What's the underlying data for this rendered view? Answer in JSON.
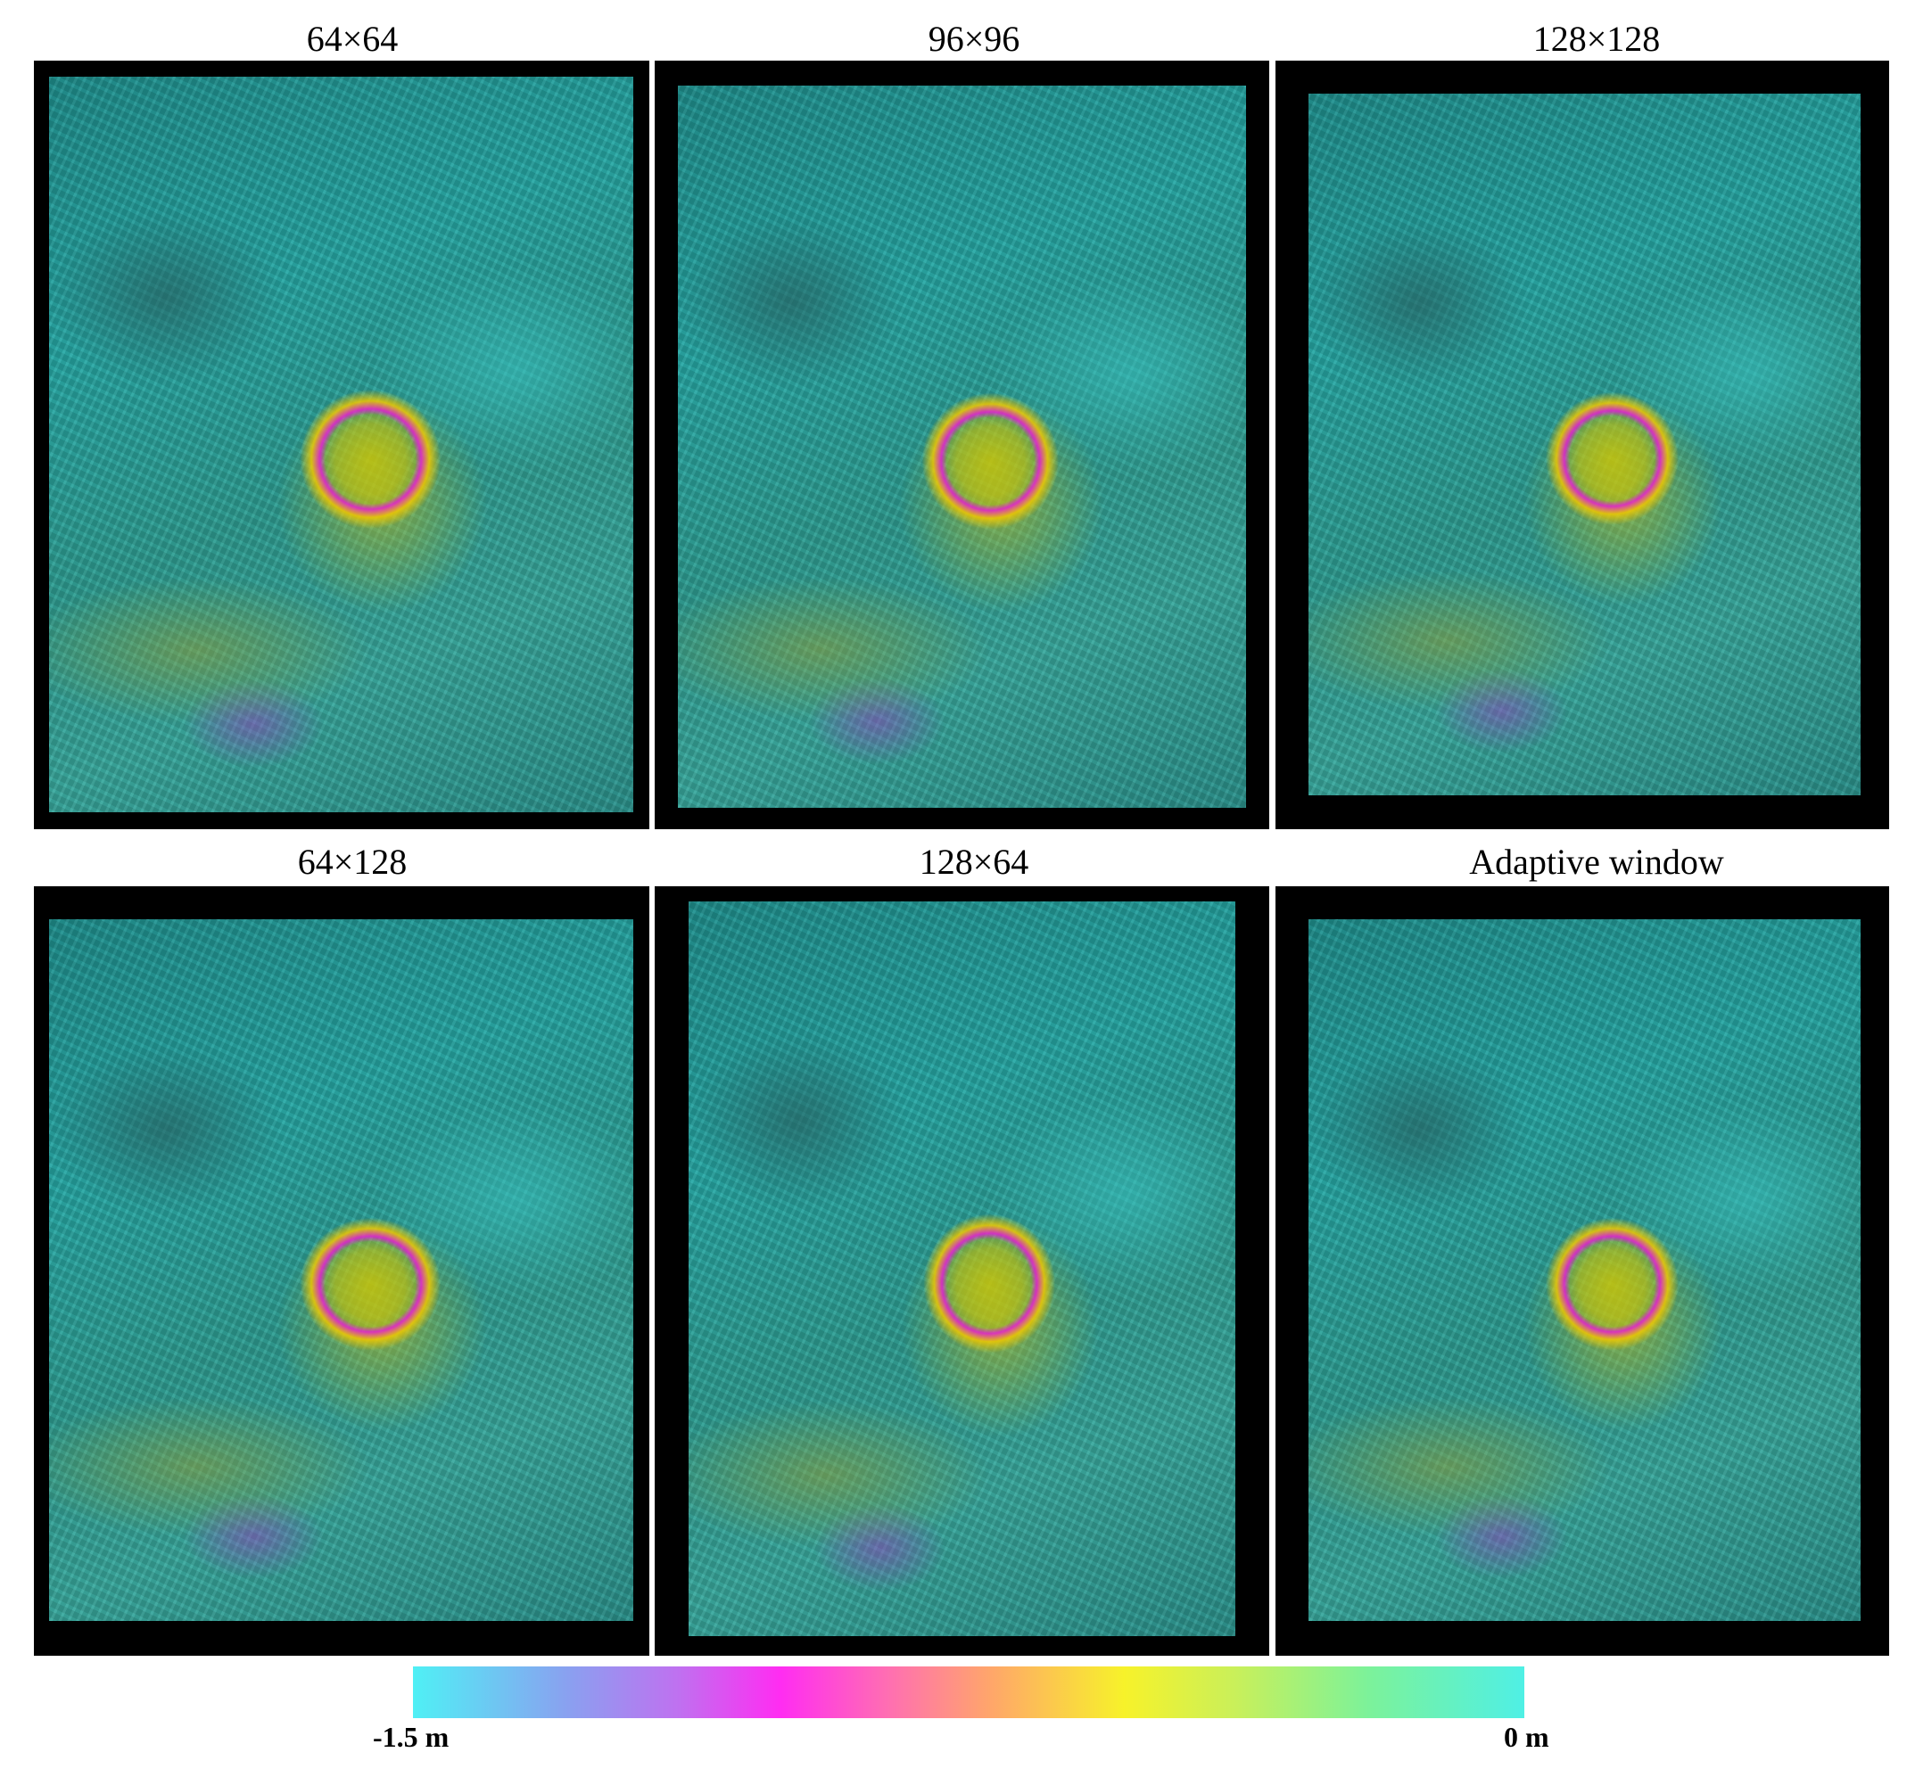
{
  "panels": [
    {
      "title": "64×64"
    },
    {
      "title": "96×96"
    },
    {
      "title": "128×128"
    },
    {
      "title": "64×128"
    },
    {
      "title": "128×64"
    },
    {
      "title": "Adaptive window"
    }
  ],
  "colorbar": {
    "min_label": "-1.5 m",
    "max_label": "0 m",
    "colors": [
      "#4ff0f5",
      "#c070f0",
      "#ff2cf2",
      "#ffa66a",
      "#f7f22a",
      "#7cf29a",
      "#4ff0e5"
    ]
  }
}
